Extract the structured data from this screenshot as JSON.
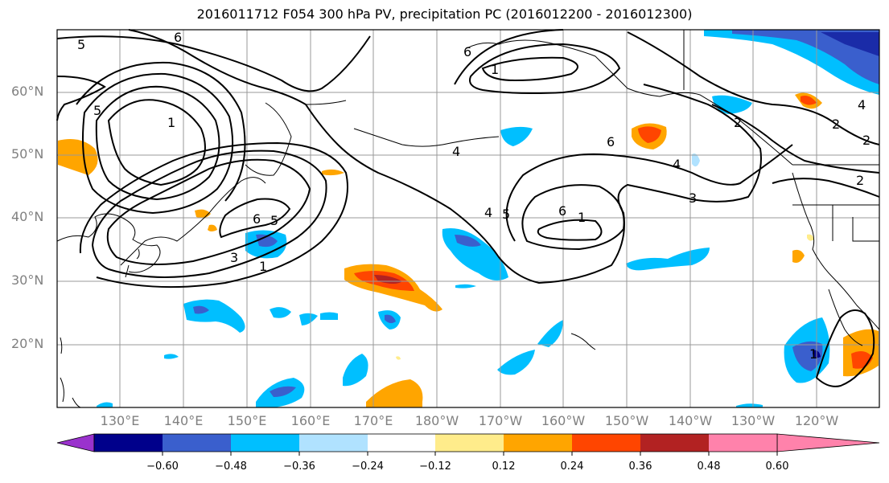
{
  "title": "2016011712 F054 300 hPa PV, precipitation PC (2016012200 - 2016012300)",
  "lat_labels": [
    "60°N",
    "50°N",
    "40°N",
    "30°N",
    "20°N"
  ],
  "lon_labels": [
    "130°E",
    "140°E",
    "150°E",
    "160°E",
    "170°E",
    "180°W",
    "170°W",
    "160°W",
    "150°W",
    "140°W",
    "130°W",
    "120°W"
  ],
  "colorbar": {
    "tick_labels": [
      "−0.60",
      "−0.48",
      "−0.36",
      "−0.24",
      "−0.12",
      "0.12",
      "0.24",
      "0.36",
      "0.48",
      "0.60"
    ],
    "colors": [
      "#9a32cd",
      "#00008b",
      "#3a5fcd",
      "#00bfff",
      "#b0e2ff",
      "#ffffff",
      "#ffec8b",
      "#ffa500",
      "#ff4500",
      "#b22222",
      "#ff82ab"
    ]
  },
  "contour_labels": [
    "5",
    "6",
    "5",
    "1",
    "6",
    "5",
    "3",
    "1",
    "4",
    "6",
    "5",
    "4",
    "1",
    "6",
    "4",
    "3",
    "1",
    "6",
    "2",
    "4",
    "2",
    "2",
    "2",
    "1"
  ],
  "colors": {
    "frame": "#000000",
    "grid": "#999999",
    "tick_text": "#808080"
  }
}
